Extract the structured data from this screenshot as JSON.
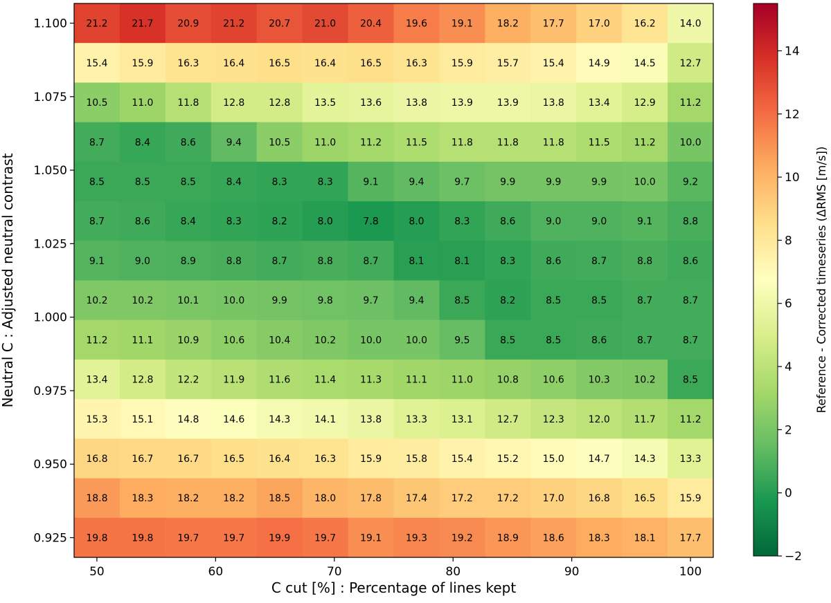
{
  "chart_data": {
    "type": "heatmap",
    "xlabel": "C cut [%] : Percentage of lines kept",
    "ylabel": "Neutral C : Adjusted neutral contrast",
    "x_values": [
      50,
      53.85,
      57.69,
      61.54,
      65.38,
      69.23,
      73.08,
      76.92,
      80.77,
      84.62,
      88.46,
      92.31,
      96.15,
      100
    ],
    "y_values": [
      1.1,
      1.0865,
      1.0731,
      1.0596,
      1.0462,
      1.0327,
      1.0192,
      1.0058,
      0.9923,
      0.9788,
      0.9654,
      0.9519,
      0.9385,
      0.925
    ],
    "xlim": [
      48.08,
      101.92
    ],
    "ylim": [
      0.9183,
      1.1067
    ],
    "x_ticks": [
      {
        "value": 50,
        "label": "50"
      },
      {
        "value": 60,
        "label": "60"
      },
      {
        "value": 70,
        "label": "70"
      },
      {
        "value": 80,
        "label": "80"
      },
      {
        "value": 90,
        "label": "90"
      },
      {
        "value": 100,
        "label": "100"
      }
    ],
    "y_ticks": [
      {
        "value": 1.1,
        "label": "1.100"
      },
      {
        "value": 1.075,
        "label": "1.075"
      },
      {
        "value": 1.05,
        "label": "1.050"
      },
      {
        "value": 1.025,
        "label": "1.025"
      },
      {
        "value": 1.0,
        "label": "1.000"
      },
      {
        "value": 0.975,
        "label": "0.975"
      },
      {
        "value": 0.95,
        "label": "0.950"
      },
      {
        "value": 0.925,
        "label": "0.925"
      }
    ],
    "values": [
      [
        21.2,
        21.7,
        20.9,
        21.2,
        20.7,
        21.0,
        20.4,
        19.6,
        19.1,
        18.2,
        17.7,
        17.0,
        16.2,
        14.0
      ],
      [
        15.4,
        15.9,
        16.3,
        16.4,
        16.5,
        16.4,
        16.5,
        16.3,
        15.9,
        15.7,
        15.4,
        14.9,
        14.5,
        12.7
      ],
      [
        10.5,
        11.0,
        11.8,
        12.8,
        12.8,
        13.5,
        13.6,
        13.8,
        13.9,
        13.9,
        13.8,
        13.4,
        12.9,
        11.2
      ],
      [
        8.7,
        8.4,
        8.6,
        9.4,
        10.5,
        11.0,
        11.2,
        11.5,
        11.8,
        11.8,
        11.8,
        11.5,
        11.2,
        10.0
      ],
      [
        8.5,
        8.5,
        8.5,
        8.4,
        8.3,
        8.3,
        9.1,
        9.4,
        9.7,
        9.9,
        9.9,
        9.9,
        10.0,
        9.2
      ],
      [
        8.7,
        8.6,
        8.4,
        8.3,
        8.2,
        8.0,
        7.8,
        8.0,
        8.3,
        8.6,
        9.0,
        9.0,
        9.1,
        8.8
      ],
      [
        9.1,
        9.0,
        8.9,
        8.8,
        8.7,
        8.8,
        8.7,
        8.1,
        8.1,
        8.3,
        8.6,
        8.7,
        8.8,
        8.6
      ],
      [
        10.2,
        10.2,
        10.1,
        10.0,
        9.9,
        9.8,
        9.7,
        9.4,
        8.5,
        8.2,
        8.5,
        8.5,
        8.7,
        8.7
      ],
      [
        11.2,
        11.1,
        10.9,
        10.6,
        10.4,
        10.2,
        10.0,
        10.0,
        9.5,
        8.5,
        8.5,
        8.6,
        8.7,
        8.7
      ],
      [
        13.4,
        12.8,
        12.2,
        11.9,
        11.6,
        11.4,
        11.3,
        11.1,
        11.0,
        10.8,
        10.6,
        10.3,
        10.2,
        8.5
      ],
      [
        15.3,
        15.1,
        14.8,
        14.6,
        14.3,
        14.1,
        13.8,
        13.3,
        13.1,
        12.7,
        12.3,
        12.0,
        11.7,
        11.2
      ],
      [
        16.8,
        16.7,
        16.7,
        16.5,
        16.4,
        16.3,
        15.9,
        15.8,
        15.4,
        15.2,
        15.0,
        14.7,
        14.3,
        13.3
      ],
      [
        18.8,
        18.3,
        18.2,
        18.2,
        18.5,
        18.0,
        17.8,
        17.4,
        17.2,
        17.2,
        17.0,
        16.8,
        16.5,
        15.9
      ],
      [
        19.8,
        19.8,
        19.7,
        19.7,
        19.9,
        19.7,
        19.1,
        19.3,
        19.2,
        18.9,
        18.6,
        18.3,
        18.1,
        17.7
      ]
    ],
    "colorbar": {
      "label": "Reference - Corrected timeseries (ΔRMS [m/s])",
      "colormap": "RdYlGn_r",
      "vmin": -2,
      "vmax": 15.5,
      "ticks": [
        {
          "value": -2,
          "label": "−2"
        },
        {
          "value": 0,
          "label": "0"
        },
        {
          "value": 2,
          "label": "2"
        },
        {
          "value": 4,
          "label": "4"
        },
        {
          "value": 6,
          "label": "6"
        },
        {
          "value": 8,
          "label": "8"
        },
        {
          "value": 10,
          "label": "10"
        },
        {
          "value": 12,
          "label": "12"
        },
        {
          "value": 14,
          "label": "14"
        }
      ]
    },
    "color_value_offset": 8.0
  }
}
